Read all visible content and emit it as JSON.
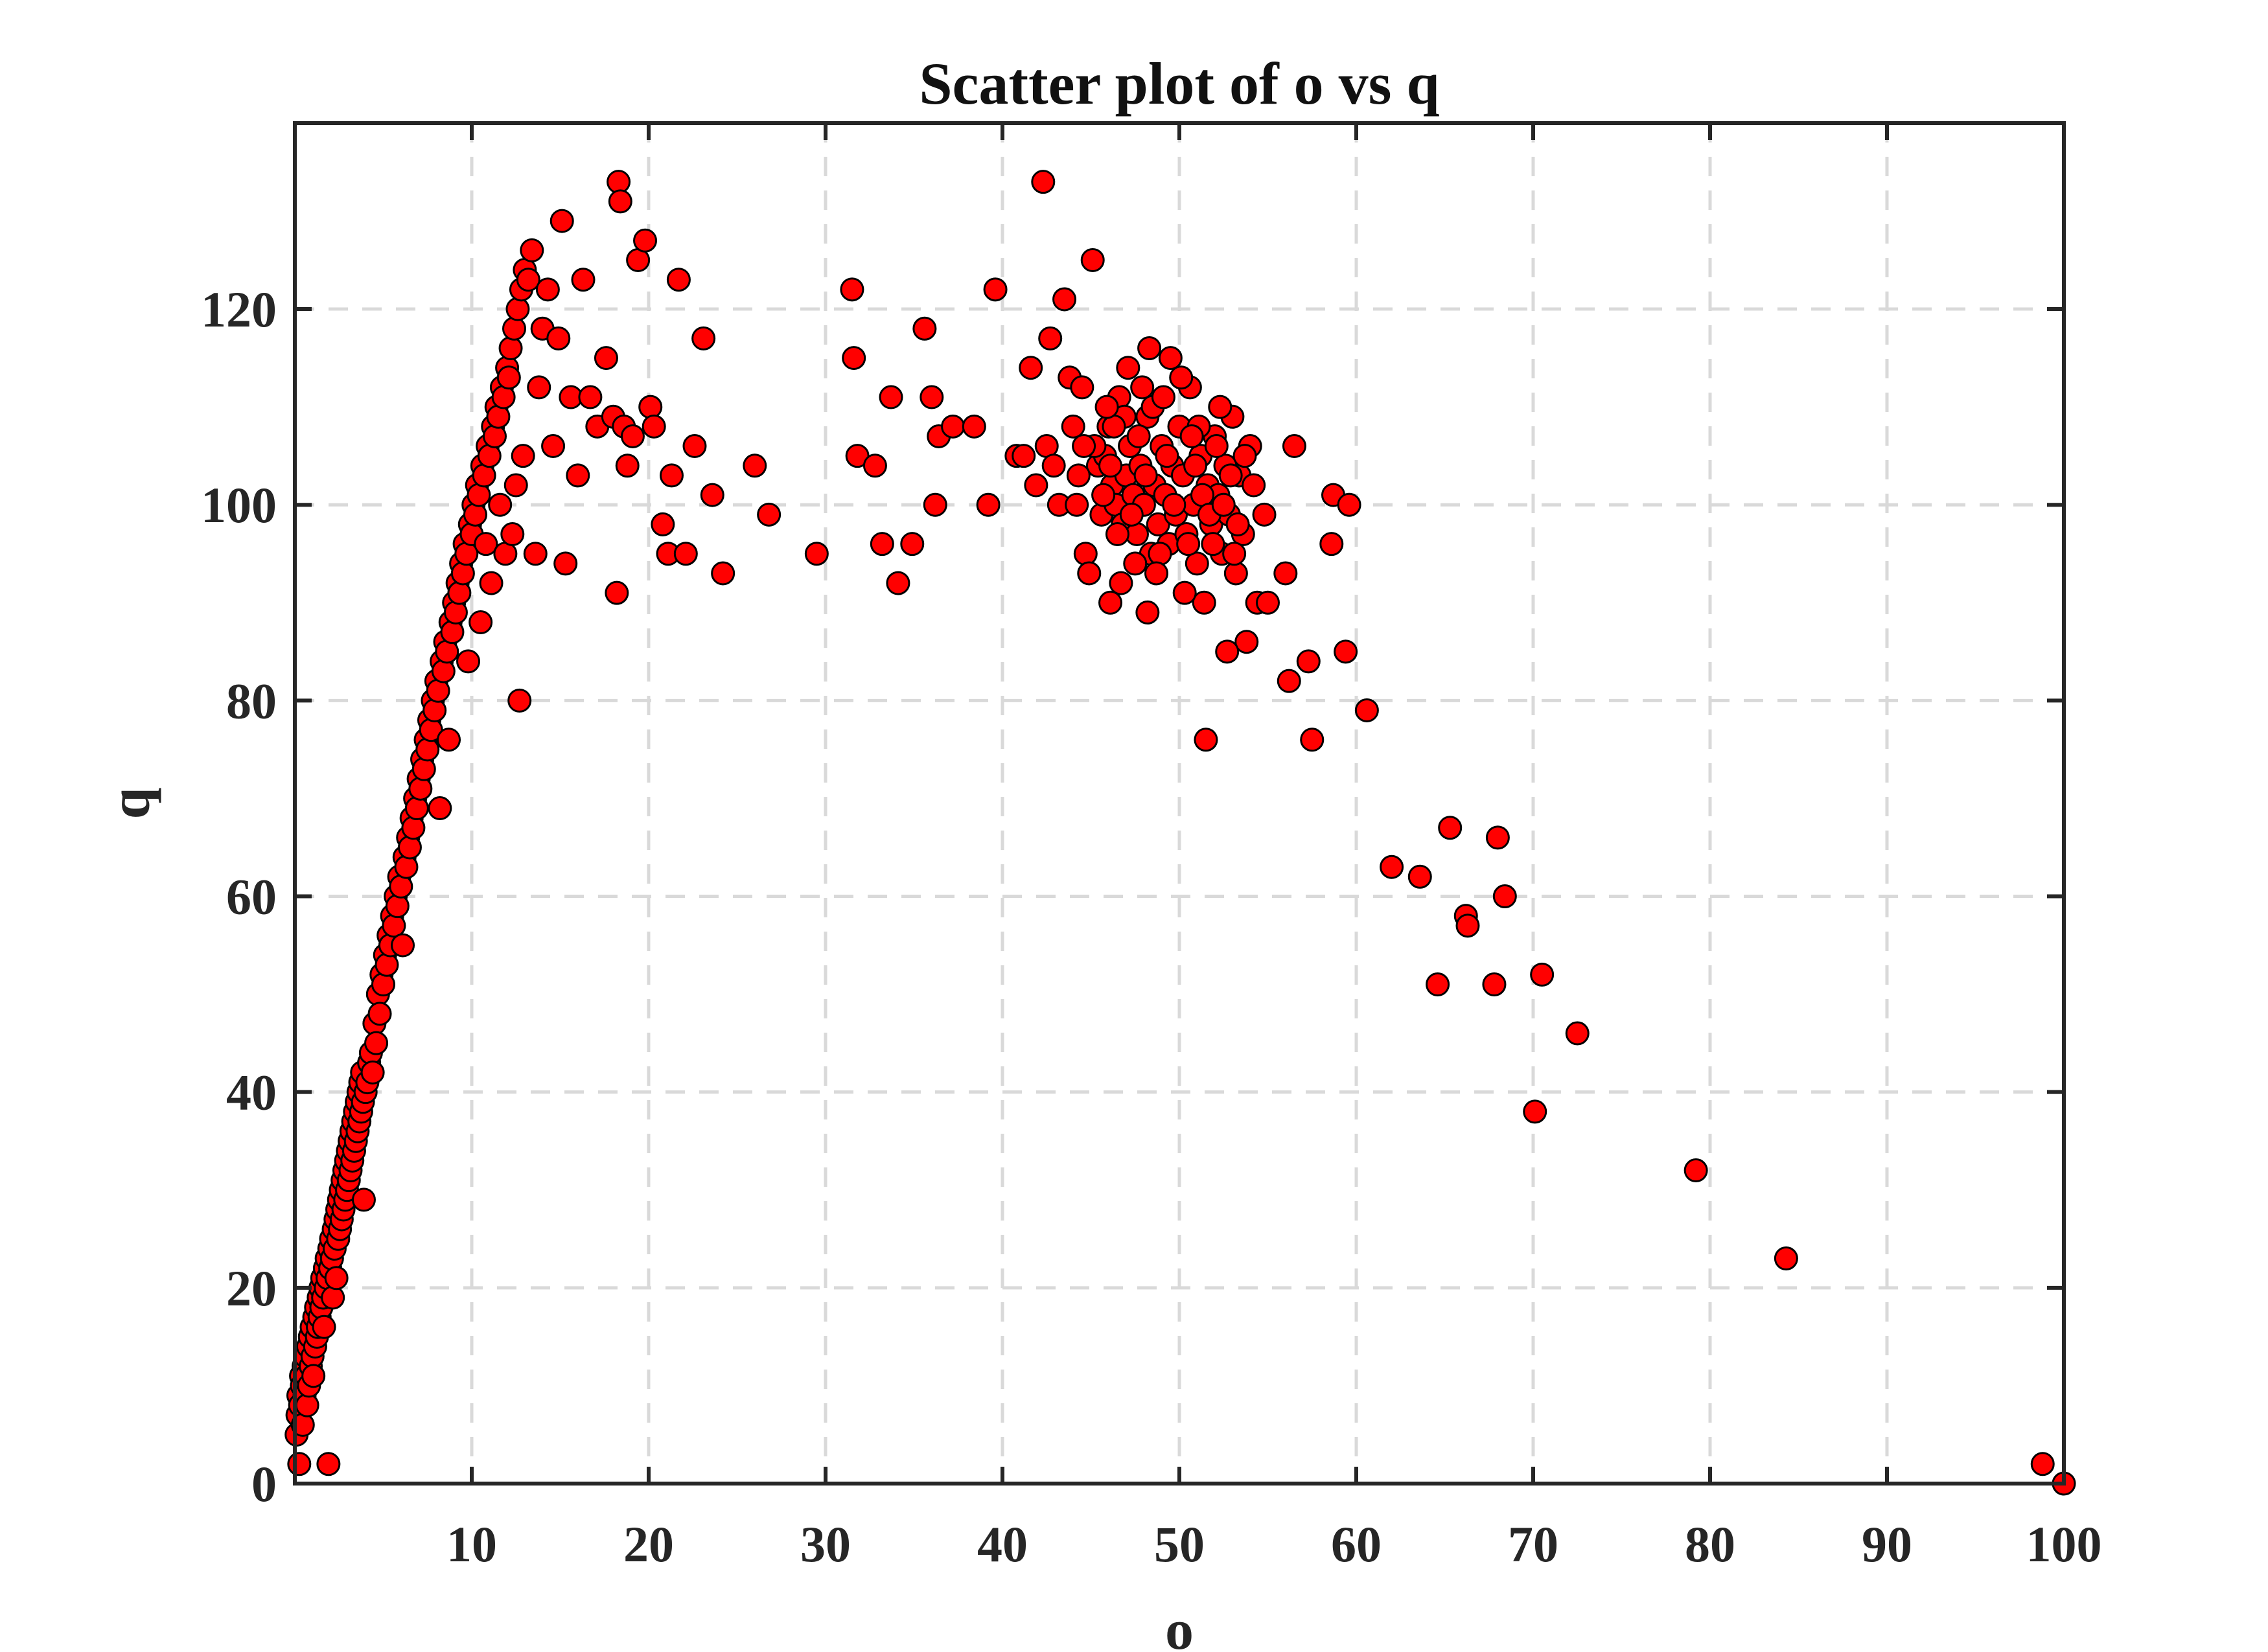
{
  "chart_data": {
    "type": "scatter",
    "title": "Scatter plot of o vs q",
    "xlabel": "o",
    "ylabel": "q",
    "xlim": [
      0,
      100
    ],
    "ylim": [
      0,
      139
    ],
    "xticks": [
      10,
      20,
      30,
      40,
      50,
      60,
      70,
      80,
      90,
      100
    ],
    "yticks": [
      0,
      20,
      40,
      60,
      80,
      100,
      120
    ],
    "grid": true,
    "marker_color": "#ff0000",
    "marker_edge": "#000000",
    "points": [
      [
        0.1,
        5
      ],
      [
        0.15,
        7
      ],
      [
        0.2,
        9
      ],
      [
        0.25,
        2
      ],
      [
        0.3,
        8
      ],
      [
        0.35,
        11
      ],
      [
        0.4,
        10
      ],
      [
        0.45,
        6
      ],
      [
        0.5,
        12
      ],
      [
        0.55,
        9
      ],
      [
        0.6,
        13
      ],
      [
        0.65,
        11
      ],
      [
        0.7,
        8
      ],
      [
        0.75,
        14
      ],
      [
        0.8,
        10
      ],
      [
        0.85,
        15
      ],
      [
        0.9,
        12
      ],
      [
        0.95,
        16
      ],
      [
        1.0,
        13
      ],
      [
        1.05,
        11
      ],
      [
        1.1,
        17
      ],
      [
        1.15,
        14
      ],
      [
        1.2,
        18
      ],
      [
        1.25,
        15
      ],
      [
        1.3,
        16
      ],
      [
        1.35,
        19
      ],
      [
        1.4,
        17
      ],
      [
        1.45,
        20
      ],
      [
        1.5,
        18
      ],
      [
        1.55,
        21
      ],
      [
        1.6,
        19
      ],
      [
        1.65,
        16
      ],
      [
        1.7,
        22
      ],
      [
        1.75,
        20
      ],
      [
        1.8,
        23
      ],
      [
        1.85,
        21
      ],
      [
        1.9,
        2
      ],
      [
        1.95,
        24
      ],
      [
        2.0,
        22
      ],
      [
        2.05,
        25
      ],
      [
        2.1,
        23
      ],
      [
        2.15,
        19
      ],
      [
        2.2,
        26
      ],
      [
        2.25,
        24
      ],
      [
        2.3,
        27
      ],
      [
        2.35,
        21
      ],
      [
        2.4,
        28
      ],
      [
        2.45,
        25
      ],
      [
        2.5,
        29
      ],
      [
        2.55,
        26
      ],
      [
        2.6,
        30
      ],
      [
        2.65,
        27
      ],
      [
        2.7,
        31
      ],
      [
        2.75,
        28
      ],
      [
        2.8,
        32
      ],
      [
        2.85,
        29
      ],
      [
        2.9,
        33
      ],
      [
        2.95,
        30
      ],
      [
        3.0,
        34
      ],
      [
        3.05,
        31
      ],
      [
        3.1,
        35
      ],
      [
        3.15,
        32
      ],
      [
        3.2,
        36
      ],
      [
        3.25,
        33
      ],
      [
        3.3,
        37
      ],
      [
        3.35,
        34
      ],
      [
        3.4,
        38
      ],
      [
        3.45,
        35
      ],
      [
        3.5,
        39
      ],
      [
        3.55,
        36
      ],
      [
        3.6,
        40
      ],
      [
        3.65,
        37
      ],
      [
        3.7,
        41
      ],
      [
        3.75,
        38
      ],
      [
        3.8,
        42
      ],
      [
        3.85,
        39
      ],
      [
        3.9,
        29
      ],
      [
        4.0,
        40
      ],
      [
        4.1,
        41
      ],
      [
        4.2,
        43
      ],
      [
        4.3,
        44
      ],
      [
        4.4,
        42
      ],
      [
        4.5,
        47
      ],
      [
        4.6,
        45
      ],
      [
        4.7,
        50
      ],
      [
        4.8,
        48
      ],
      [
        4.9,
        52
      ],
      [
        5.0,
        51
      ],
      [
        5.1,
        54
      ],
      [
        5.2,
        53
      ],
      [
        5.3,
        56
      ],
      [
        5.4,
        55
      ],
      [
        5.5,
        58
      ],
      [
        5.6,
        57
      ],
      [
        5.7,
        60
      ],
      [
        5.8,
        59
      ],
      [
        5.9,
        62
      ],
      [
        6.0,
        61
      ],
      [
        6.1,
        55
      ],
      [
        6.2,
        64
      ],
      [
        6.3,
        63
      ],
      [
        6.4,
        66
      ],
      [
        6.5,
        65
      ],
      [
        6.6,
        68
      ],
      [
        6.7,
        67
      ],
      [
        6.8,
        70
      ],
      [
        6.9,
        69
      ],
      [
        7.0,
        72
      ],
      [
        7.1,
        71
      ],
      [
        7.2,
        74
      ],
      [
        7.3,
        73
      ],
      [
        7.4,
        76
      ],
      [
        7.5,
        75
      ],
      [
        7.6,
        78
      ],
      [
        7.7,
        77
      ],
      [
        7.8,
        80
      ],
      [
        7.9,
        79
      ],
      [
        8.0,
        82
      ],
      [
        8.1,
        81
      ],
      [
        8.2,
        69
      ],
      [
        8.3,
        84
      ],
      [
        8.4,
        83
      ],
      [
        8.5,
        86
      ],
      [
        8.6,
        85
      ],
      [
        8.7,
        76
      ],
      [
        8.8,
        88
      ],
      [
        8.9,
        87
      ],
      [
        9.0,
        90
      ],
      [
        9.1,
        89
      ],
      [
        9.2,
        92
      ],
      [
        9.3,
        91
      ],
      [
        9.4,
        94
      ],
      [
        9.5,
        93
      ],
      [
        9.6,
        96
      ],
      [
        9.7,
        95
      ],
      [
        9.8,
        84
      ],
      [
        9.9,
        98
      ],
      [
        10.0,
        97
      ],
      [
        10.1,
        100
      ],
      [
        10.2,
        99
      ],
      [
        10.3,
        102
      ],
      [
        10.4,
        101
      ],
      [
        10.5,
        88
      ],
      [
        10.6,
        104
      ],
      [
        10.7,
        103
      ],
      [
        10.8,
        96
      ],
      [
        10.9,
        106
      ],
      [
        11.0,
        105
      ],
      [
        11.1,
        92
      ],
      [
        11.2,
        108
      ],
      [
        11.3,
        107
      ],
      [
        11.4,
        110
      ],
      [
        11.5,
        109
      ],
      [
        11.6,
        100
      ],
      [
        11.7,
        112
      ],
      [
        11.8,
        111
      ],
      [
        11.9,
        95
      ],
      [
        12.0,
        114
      ],
      [
        12.1,
        113
      ],
      [
        12.2,
        116
      ],
      [
        12.3,
        97
      ],
      [
        12.4,
        118
      ],
      [
        12.5,
        102
      ],
      [
        12.6,
        120
      ],
      [
        12.7,
        80
      ],
      [
        12.8,
        122
      ],
      [
        12.9,
        105
      ],
      [
        13.0,
        124
      ],
      [
        13.2,
        123
      ],
      [
        13.4,
        126
      ],
      [
        13.6,
        95
      ],
      [
        13.8,
        112
      ],
      [
        14.0,
        118
      ],
      [
        14.3,
        122
      ],
      [
        14.6,
        106
      ],
      [
        14.9,
        117
      ],
      [
        15.1,
        129
      ],
      [
        15.3,
        94
      ],
      [
        15.6,
        111
      ],
      [
        16.0,
        103
      ],
      [
        16.3,
        123
      ],
      [
        16.7,
        111
      ],
      [
        17.1,
        108
      ],
      [
        17.6,
        115
      ],
      [
        18.0,
        109
      ],
      [
        18.2,
        91
      ],
      [
        18.3,
        133
      ],
      [
        18.4,
        131
      ],
      [
        18.6,
        108
      ],
      [
        18.8,
        104
      ],
      [
        19.1,
        107
      ],
      [
        19.4,
        125
      ],
      [
        19.8,
        127
      ],
      [
        20.1,
        110
      ],
      [
        20.3,
        108
      ],
      [
        20.8,
        98
      ],
      [
        21.1,
        95
      ],
      [
        21.3,
        103
      ],
      [
        21.7,
        123
      ],
      [
        22.1,
        95
      ],
      [
        22.6,
        106
      ],
      [
        23.1,
        117
      ],
      [
        23.6,
        101
      ],
      [
        24.2,
        93
      ],
      [
        26.0,
        104
      ],
      [
        26.8,
        99
      ],
      [
        29.5,
        95
      ],
      [
        31.5,
        122
      ],
      [
        31.6,
        115
      ],
      [
        31.8,
        105
      ],
      [
        32.8,
        104
      ],
      [
        33.2,
        96
      ],
      [
        33.7,
        111
      ],
      [
        34.1,
        92
      ],
      [
        34.9,
        96
      ],
      [
        35.6,
        118
      ],
      [
        36.0,
        111
      ],
      [
        36.2,
        100
      ],
      [
        36.4,
        107
      ],
      [
        37.2,
        108
      ],
      [
        38.4,
        108
      ],
      [
        39.2,
        100
      ],
      [
        39.6,
        122
      ],
      [
        40.8,
        105
      ],
      [
        41.2,
        105
      ],
      [
        41.6,
        114
      ],
      [
        41.9,
        102
      ],
      [
        42.3,
        133
      ],
      [
        42.5,
        106
      ],
      [
        42.7,
        117
      ],
      [
        42.9,
        104
      ],
      [
        43.2,
        100
      ],
      [
        43.5,
        121
      ],
      [
        43.8,
        113
      ],
      [
        44.0,
        108
      ],
      [
        44.2,
        100
      ],
      [
        44.5,
        112
      ],
      [
        44.7,
        95
      ],
      [
        44.9,
        93
      ],
      [
        45.1,
        125
      ],
      [
        45.4,
        104
      ],
      [
        45.6,
        99
      ],
      [
        45.8,
        105
      ],
      [
        46.0,
        108
      ],
      [
        46.2,
        102
      ],
      [
        46.4,
        100
      ],
      [
        46.6,
        111
      ],
      [
        46.8,
        98
      ],
      [
        47.0,
        103
      ],
      [
        47.2,
        106
      ],
      [
        47.4,
        101
      ],
      [
        47.6,
        97
      ],
      [
        47.8,
        104
      ],
      [
        48.0,
        100
      ],
      [
        48.2,
        109
      ],
      [
        48.4,
        95
      ],
      [
        48.6,
        102
      ],
      [
        48.8,
        98
      ],
      [
        49.0,
        106
      ],
      [
        49.2,
        101
      ],
      [
        49.4,
        96
      ],
      [
        49.6,
        104
      ],
      [
        49.8,
        99
      ],
      [
        50.0,
        108
      ],
      [
        50.2,
        103
      ],
      [
        50.4,
        97
      ],
      [
        50.6,
        112
      ],
      [
        50.8,
        100
      ],
      [
        51.0,
        94
      ],
      [
        51.2,
        105
      ],
      [
        51.4,
        90
      ],
      [
        51.6,
        102
      ],
      [
        51.8,
        98
      ],
      [
        52.0,
        107
      ],
      [
        52.2,
        101
      ],
      [
        52.4,
        95
      ],
      [
        52.6,
        104
      ],
      [
        52.8,
        99
      ],
      [
        53.0,
        109
      ],
      [
        53.2,
        93
      ],
      [
        53.4,
        103
      ],
      [
        53.6,
        97
      ],
      [
        53.8,
        86
      ],
      [
        54.0,
        106
      ],
      [
        54.2,
        102
      ],
      [
        54.4,
        90
      ],
      [
        54.8,
        99
      ],
      [
        55.0,
        90
      ],
      [
        56.0,
        93
      ],
      [
        56.2,
        82
      ],
      [
        56.5,
        106
      ],
      [
        57.3,
        84
      ],
      [
        57.5,
        76
      ],
      [
        58.6,
        96
      ],
      [
        58.7,
        101
      ],
      [
        59.4,
        85
      ],
      [
        59.6,
        100
      ],
      [
        60.6,
        79
      ],
      [
        62.0,
        63
      ],
      [
        63.6,
        62
      ],
      [
        64.6,
        51
      ],
      [
        65.3,
        67
      ],
      [
        66.2,
        58
      ],
      [
        66.3,
        57
      ],
      [
        67.8,
        51
      ],
      [
        68.0,
        66
      ],
      [
        68.4,
        60
      ],
      [
        70.1,
        38
      ],
      [
        70.5,
        52
      ],
      [
        72.5,
        46
      ],
      [
        79.2,
        32
      ],
      [
        84.3,
        23
      ],
      [
        98.8,
        2
      ],
      [
        100,
        0
      ],
      [
        45.2,
        106
      ],
      [
        45.7,
        101
      ],
      [
        46.1,
        104
      ],
      [
        46.5,
        97
      ],
      [
        46.9,
        109
      ],
      [
        47.3,
        99
      ],
      [
        47.7,
        107
      ],
      [
        48.1,
        103
      ],
      [
        48.5,
        110
      ],
      [
        48.9,
        95
      ],
      [
        49.3,
        105
      ],
      [
        49.7,
        100
      ],
      [
        50.1,
        113
      ],
      [
        50.5,
        96
      ],
      [
        50.9,
        104
      ],
      [
        51.3,
        101
      ],
      [
        51.7,
        99
      ],
      [
        52.1,
        106
      ],
      [
        52.5,
        100
      ],
      [
        52.9,
        103
      ],
      [
        53.3,
        98
      ],
      [
        53.7,
        105
      ],
      [
        47.1,
        114
      ],
      [
        48.3,
        116
      ],
      [
        49.5,
        115
      ],
      [
        46.3,
        108
      ],
      [
        47.9,
        112
      ],
      [
        45.9,
        110
      ],
      [
        51.1,
        108
      ],
      [
        52.3,
        110
      ],
      [
        50.7,
        107
      ],
      [
        49.1,
        111
      ],
      [
        48.7,
        93
      ],
      [
        46.7,
        92
      ],
      [
        50.3,
        91
      ],
      [
        47.5,
        94
      ],
      [
        51.9,
        96
      ],
      [
        53.1,
        95
      ],
      [
        46.1,
        90
      ],
      [
        48.2,
        89
      ],
      [
        52.7,
        85
      ],
      [
        51.5,
        76
      ],
      [
        44.6,
        106
      ],
      [
        44.3,
        103
      ]
    ]
  }
}
